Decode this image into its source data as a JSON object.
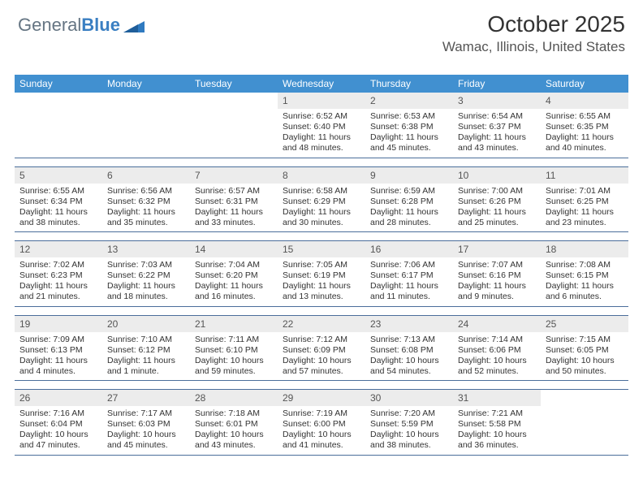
{
  "brand": {
    "part1": "General",
    "part2": "Blue"
  },
  "title": "October 2025",
  "location": "Wamac, Illinois, United States",
  "colors": {
    "header_bg": "#4190d0",
    "header_text": "#ffffff",
    "daynum_bg": "#ececec",
    "rule": "#4b6e9b"
  },
  "day_names": [
    "Sunday",
    "Monday",
    "Tuesday",
    "Wednesday",
    "Thursday",
    "Friday",
    "Saturday"
  ],
  "weeks": [
    [
      {
        "blank": true
      },
      {
        "blank": true
      },
      {
        "blank": true
      },
      {
        "day": "1",
        "sunrise": "6:52 AM",
        "sunset": "6:40 PM",
        "daylight": "11 hours and 48 minutes."
      },
      {
        "day": "2",
        "sunrise": "6:53 AM",
        "sunset": "6:38 PM",
        "daylight": "11 hours and 45 minutes."
      },
      {
        "day": "3",
        "sunrise": "6:54 AM",
        "sunset": "6:37 PM",
        "daylight": "11 hours and 43 minutes."
      },
      {
        "day": "4",
        "sunrise": "6:55 AM",
        "sunset": "6:35 PM",
        "daylight": "11 hours and 40 minutes."
      }
    ],
    [
      {
        "day": "5",
        "sunrise": "6:55 AM",
        "sunset": "6:34 PM",
        "daylight": "11 hours and 38 minutes."
      },
      {
        "day": "6",
        "sunrise": "6:56 AM",
        "sunset": "6:32 PM",
        "daylight": "11 hours and 35 minutes."
      },
      {
        "day": "7",
        "sunrise": "6:57 AM",
        "sunset": "6:31 PM",
        "daylight": "11 hours and 33 minutes."
      },
      {
        "day": "8",
        "sunrise": "6:58 AM",
        "sunset": "6:29 PM",
        "daylight": "11 hours and 30 minutes."
      },
      {
        "day": "9",
        "sunrise": "6:59 AM",
        "sunset": "6:28 PM",
        "daylight": "11 hours and 28 minutes."
      },
      {
        "day": "10",
        "sunrise": "7:00 AM",
        "sunset": "6:26 PM",
        "daylight": "11 hours and 25 minutes."
      },
      {
        "day": "11",
        "sunrise": "7:01 AM",
        "sunset": "6:25 PM",
        "daylight": "11 hours and 23 minutes."
      }
    ],
    [
      {
        "day": "12",
        "sunrise": "7:02 AM",
        "sunset": "6:23 PM",
        "daylight": "11 hours and 21 minutes."
      },
      {
        "day": "13",
        "sunrise": "7:03 AM",
        "sunset": "6:22 PM",
        "daylight": "11 hours and 18 minutes."
      },
      {
        "day": "14",
        "sunrise": "7:04 AM",
        "sunset": "6:20 PM",
        "daylight": "11 hours and 16 minutes."
      },
      {
        "day": "15",
        "sunrise": "7:05 AM",
        "sunset": "6:19 PM",
        "daylight": "11 hours and 13 minutes."
      },
      {
        "day": "16",
        "sunrise": "7:06 AM",
        "sunset": "6:17 PM",
        "daylight": "11 hours and 11 minutes."
      },
      {
        "day": "17",
        "sunrise": "7:07 AM",
        "sunset": "6:16 PM",
        "daylight": "11 hours and 9 minutes."
      },
      {
        "day": "18",
        "sunrise": "7:08 AM",
        "sunset": "6:15 PM",
        "daylight": "11 hours and 6 minutes."
      }
    ],
    [
      {
        "day": "19",
        "sunrise": "7:09 AM",
        "sunset": "6:13 PM",
        "daylight": "11 hours and 4 minutes."
      },
      {
        "day": "20",
        "sunrise": "7:10 AM",
        "sunset": "6:12 PM",
        "daylight": "11 hours and 1 minute."
      },
      {
        "day": "21",
        "sunrise": "7:11 AM",
        "sunset": "6:10 PM",
        "daylight": "10 hours and 59 minutes."
      },
      {
        "day": "22",
        "sunrise": "7:12 AM",
        "sunset": "6:09 PM",
        "daylight": "10 hours and 57 minutes."
      },
      {
        "day": "23",
        "sunrise": "7:13 AM",
        "sunset": "6:08 PM",
        "daylight": "10 hours and 54 minutes."
      },
      {
        "day": "24",
        "sunrise": "7:14 AM",
        "sunset": "6:06 PM",
        "daylight": "10 hours and 52 minutes."
      },
      {
        "day": "25",
        "sunrise": "7:15 AM",
        "sunset": "6:05 PM",
        "daylight": "10 hours and 50 minutes."
      }
    ],
    [
      {
        "day": "26",
        "sunrise": "7:16 AM",
        "sunset": "6:04 PM",
        "daylight": "10 hours and 47 minutes."
      },
      {
        "day": "27",
        "sunrise": "7:17 AM",
        "sunset": "6:03 PM",
        "daylight": "10 hours and 45 minutes."
      },
      {
        "day": "28",
        "sunrise": "7:18 AM",
        "sunset": "6:01 PM",
        "daylight": "10 hours and 43 minutes."
      },
      {
        "day": "29",
        "sunrise": "7:19 AM",
        "sunset": "6:00 PM",
        "daylight": "10 hours and 41 minutes."
      },
      {
        "day": "30",
        "sunrise": "7:20 AM",
        "sunset": "5:59 PM",
        "daylight": "10 hours and 38 minutes."
      },
      {
        "day": "31",
        "sunrise": "7:21 AM",
        "sunset": "5:58 PM",
        "daylight": "10 hours and 36 minutes."
      },
      {
        "blank": true
      }
    ]
  ]
}
